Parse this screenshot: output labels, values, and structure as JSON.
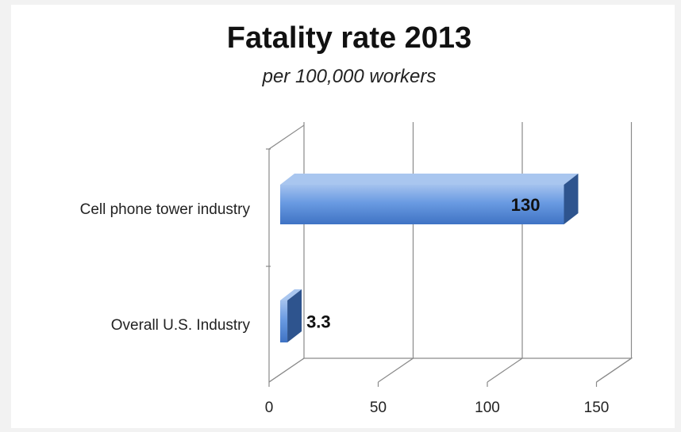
{
  "chart_data": {
    "type": "bar",
    "orientation": "horizontal",
    "title": "Fatality rate 2013",
    "subtitle": "per 100,000 workers",
    "categories": [
      "Cell phone tower industry",
      "Overall U.S. Industry"
    ],
    "values": [
      130,
      3.3
    ],
    "data_labels": [
      "130",
      "3.3"
    ],
    "xlim": [
      0,
      150
    ],
    "x_ticks": [
      0,
      50,
      100,
      150
    ],
    "x_tick_labels": [
      "0",
      "50",
      "100",
      "150"
    ],
    "grid": true,
    "legend": "none",
    "style": "3d",
    "colors": {
      "bar_front": "#5b8fdd",
      "bar_top": "#a9c6ef",
      "bar_side": "#2e548e"
    }
  }
}
